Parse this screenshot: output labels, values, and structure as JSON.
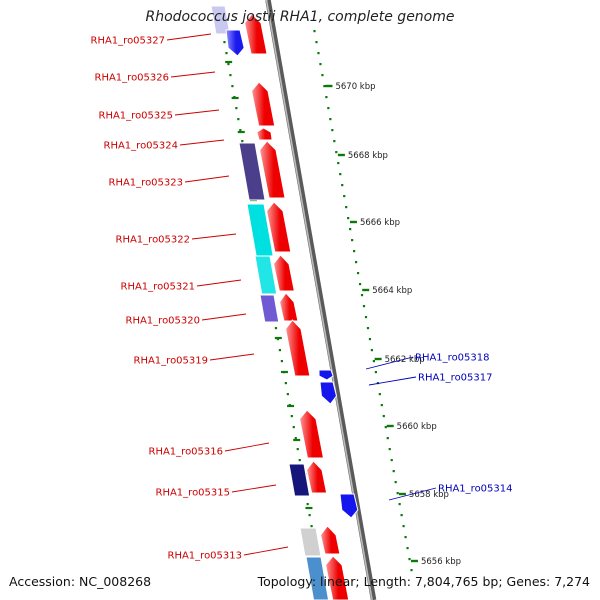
{
  "title": "Rhodococcus jostii RHA1, complete genome",
  "footer": {
    "accession": "Accession: NC_008268",
    "summary": "Topology: linear; Length: 7,804,765 bp; Genes: 7,274"
  },
  "colors": {
    "forward_strand_gene": "#ff0000",
    "reverse_strand_gene": "#0000ff",
    "forward_label": "#cc0000",
    "reverse_label": "#0000bb",
    "tick": "#0b7a0b",
    "backbone": "#8a8a8a"
  },
  "scale": {
    "unit": "kbp",
    "ticks": [
      {
        "label": "5670 kbp"
      },
      {
        "label": "5668 kbp"
      },
      {
        "label": "5666 kbp"
      },
      {
        "label": "5664 kbp"
      },
      {
        "label": "5662 kbp"
      },
      {
        "label": "5660 kbp"
      },
      {
        "label": "5658 kbp"
      },
      {
        "label": "5656 kbp"
      }
    ]
  },
  "genes": {
    "left": [
      {
        "name": "RHA1_ro05327"
      },
      {
        "name": "RHA1_ro05326"
      },
      {
        "name": "RHA1_ro05325"
      },
      {
        "name": "RHA1_ro05324"
      },
      {
        "name": "RHA1_ro05323"
      },
      {
        "name": "RHA1_ro05322"
      },
      {
        "name": "RHA1_ro05321"
      },
      {
        "name": "RHA1_ro05320"
      },
      {
        "name": "RHA1_ro05319"
      },
      {
        "name": "RHA1_ro05316"
      },
      {
        "name": "RHA1_ro05315"
      },
      {
        "name": "RHA1_ro05313"
      }
    ],
    "right": [
      {
        "name": "RHA1_ro05318"
      },
      {
        "name": "RHA1_ro05317"
      },
      {
        "name": "RHA1_ro05314"
      }
    ]
  }
}
